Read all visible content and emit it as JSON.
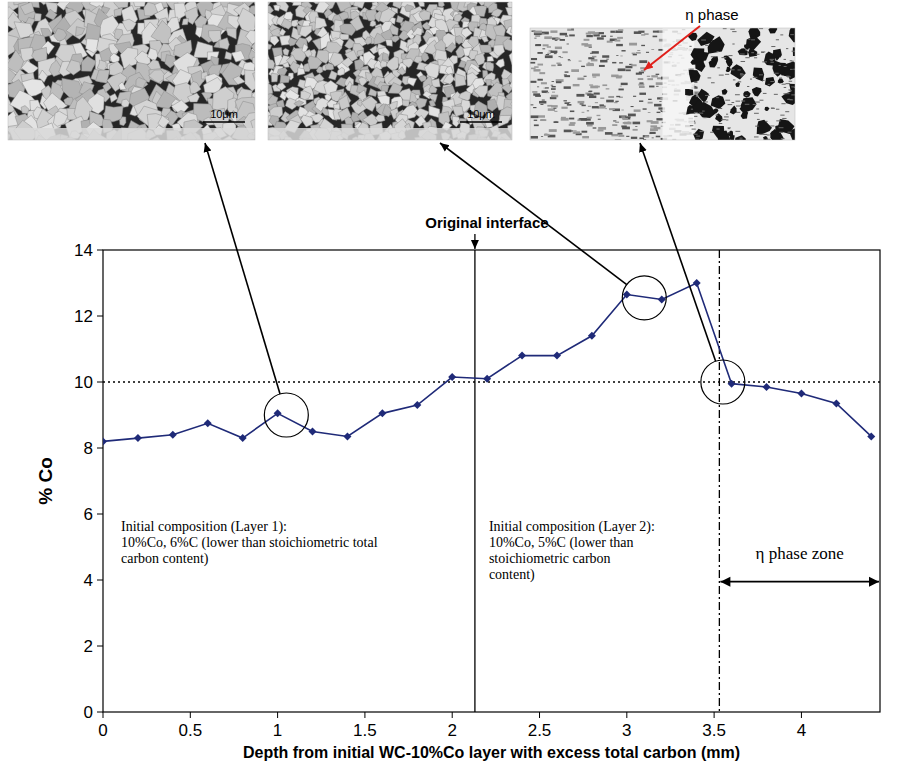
{
  "chart_data": {
    "type": "line",
    "x_label": "Depth from initial WC-10%Co layer with excess total carbon (mm)",
    "y_label": "% Co",
    "x": [
      0,
      0.2,
      0.4,
      0.6,
      0.8,
      1.0,
      1.2,
      1.4,
      1.6,
      1.8,
      2.0,
      2.2,
      2.4,
      2.6,
      2.8,
      3.0,
      3.2,
      3.4,
      3.6,
      3.8,
      4.0,
      4.2,
      4.4
    ],
    "values": [
      8.2,
      8.3,
      8.4,
      8.75,
      8.3,
      9.05,
      8.5,
      8.35,
      9.05,
      9.3,
      10.15,
      10.1,
      10.8,
      10.8,
      11.4,
      12.65,
      12.5,
      13.0,
      9.95,
      9.85,
      9.65,
      9.35,
      8.35
    ],
    "color": "#1f2a78",
    "marker": "diamond",
    "xlim": [
      0,
      4.45
    ],
    "ylim": [
      0,
      14
    ],
    "xticks": [
      0,
      0.5,
      1,
      1.5,
      2,
      2.5,
      3,
      3.5,
      4
    ],
    "yticks": [
      0,
      2,
      4,
      6,
      8,
      10,
      12,
      14
    ],
    "grid": false,
    "reference_y": 10,
    "interface": {
      "x": 2.13,
      "label": "Original interface"
    },
    "eta_zone": {
      "start": 3.53,
      "label": "η phase zone"
    },
    "highlights": [
      {
        "x": 1.05,
        "y": 9.0
      },
      {
        "x": 3.1,
        "y": 12.55
      },
      {
        "x": 3.55,
        "y": 10.0
      }
    ],
    "micrographs": [
      {
        "scale_bar": "10μm"
      },
      {
        "scale_bar": "10μm"
      },
      {
        "phase_label": "η phase"
      }
    ],
    "annotations": [
      {
        "lines": [
          "Initial composition (Layer 1):",
          "10%Co, 6%C (lower than stoichiometric total",
          "carbon content)"
        ]
      },
      {
        "lines": [
          "Initial composition (Layer 2):",
          "10%Co, 5%C (lower than",
          "stoichiometric carbon",
          "content)"
        ]
      }
    ]
  }
}
